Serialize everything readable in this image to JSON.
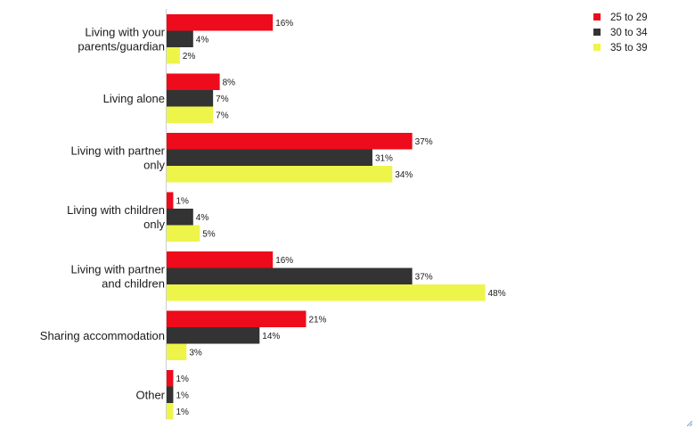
{
  "chart_data": {
    "type": "bar",
    "orientation": "horizontal",
    "categories": [
      [
        "Living with your",
        "parents/guardian"
      ],
      [
        "Living alone"
      ],
      [
        "Living with partner",
        "only"
      ],
      [
        "Living with children",
        "only"
      ],
      [
        "Living with partner",
        "and children"
      ],
      [
        "Sharing accommodation"
      ],
      [
        "Other"
      ]
    ],
    "series": [
      {
        "name": "25 to 29",
        "color": "#ee0b1b",
        "values": [
          16,
          8,
          37,
          1,
          16,
          21,
          1
        ],
        "labels": [
          "16%",
          "8%",
          "37%",
          "1%",
          "16%",
          "21%",
          "1%"
        ]
      },
      {
        "name": "30 to 34",
        "color": "#333333",
        "values": [
          4,
          7,
          31,
          4,
          37,
          14,
          1
        ],
        "labels": [
          "4%",
          "7%",
          "31%",
          "4%",
          "37%",
          "14%",
          "1%"
        ]
      },
      {
        "name": "35 to 39",
        "color": "#eef54a",
        "values": [
          2,
          7,
          34,
          5,
          48,
          3,
          1
        ],
        "labels": [
          "2%",
          "7%",
          "34%",
          "5%",
          "48%",
          "3%",
          "1%"
        ]
      }
    ],
    "unit": "%",
    "xlim": [
      0,
      80
    ],
    "grid": false,
    "legend_position": "top-right"
  }
}
